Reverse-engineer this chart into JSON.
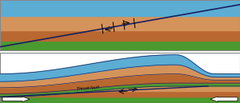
{
  "colors": {
    "light_blue": "#5BADD4",
    "orange_light": "#D4935A",
    "orange_dark": "#B86830",
    "green": "#4A9A30",
    "dark_navy": "#1A2060",
    "outline": "#1A2060",
    "white": "#FFFFFF",
    "black": "#000000",
    "bg": "#FFFFFF"
  },
  "panel2_label": "Thrust fault"
}
